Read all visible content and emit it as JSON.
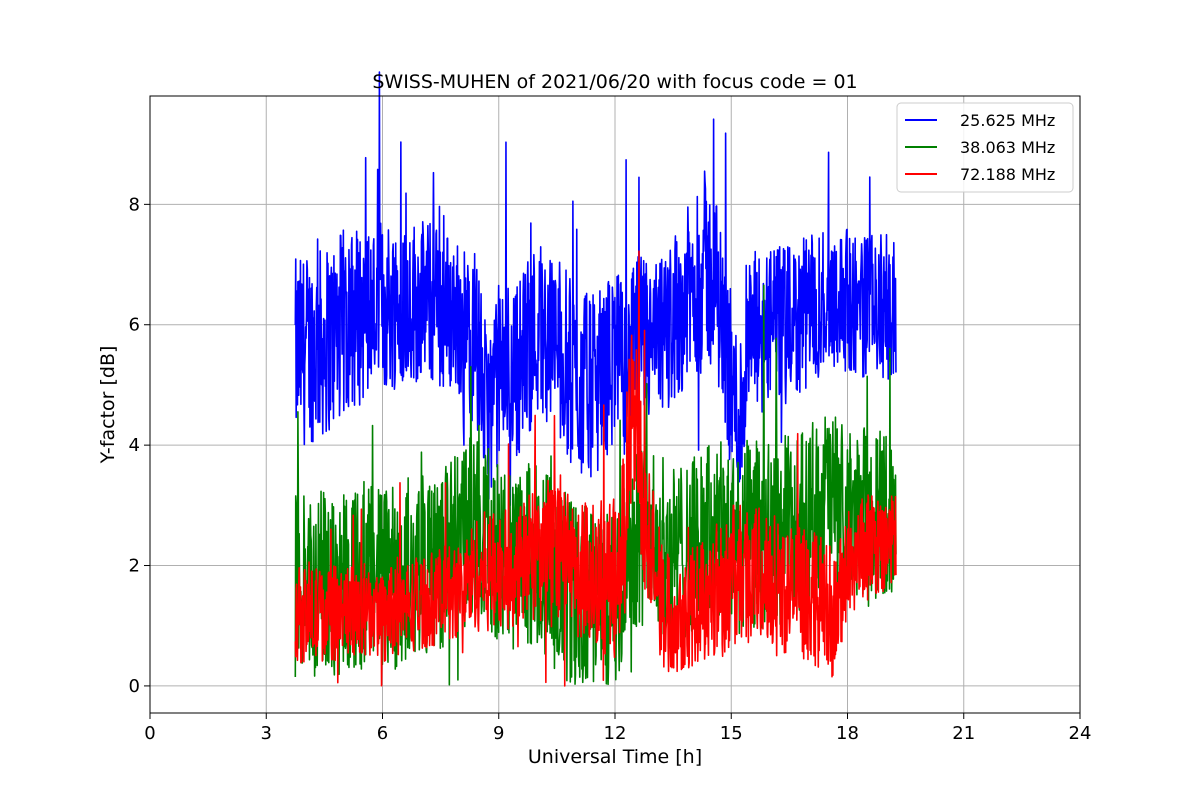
{
  "chart_data": {
    "type": "line",
    "title": "SWISS-MUHEN of 2021/06/20 with focus code = 01",
    "xlabel": "Universal Time [h]",
    "ylabel": "Y-factor [dB]",
    "xlim": [
      0,
      24
    ],
    "ylim": [
      -0.45,
      9.8
    ],
    "xticks": [
      0,
      3,
      6,
      9,
      12,
      15,
      18,
      21,
      24
    ],
    "yticks": [
      0,
      2,
      4,
      6,
      8
    ],
    "grid": true,
    "legend_position": "top-right",
    "series": [
      {
        "name": "25.625 MHz",
        "color": "#0000ff",
        "x": [
          3.75,
          4.0,
          4.5,
          5.0,
          5.5,
          6.0,
          6.5,
          7.0,
          7.5,
          8.0,
          8.5,
          8.7,
          9.0,
          9.5,
          10.0,
          10.5,
          11.0,
          11.5,
          12.0,
          12.3,
          12.6,
          13.0,
          13.5,
          14.0,
          14.3,
          14.7,
          15.0,
          15.2,
          15.5,
          16.0,
          16.5,
          17.0,
          17.5,
          18.0,
          18.5,
          19.0,
          19.25
        ],
        "y": [
          5.5,
          5.6,
          5.7,
          6.0,
          6.2,
          6.3,
          6.4,
          6.4,
          6.3,
          6.1,
          5.5,
          4.4,
          5.2,
          5.3,
          6.0,
          5.7,
          5.0,
          5.0,
          5.5,
          5.2,
          5.8,
          5.6,
          6.1,
          6.6,
          7.0,
          6.4,
          5.0,
          4.3,
          5.8,
          6.0,
          6.0,
          6.2,
          6.5,
          6.4,
          6.3,
          6.3,
          6.2
        ],
        "spread": [
          1.6,
          1.6,
          1.6,
          1.6,
          1.5,
          1.5,
          1.4,
          1.4,
          1.4,
          1.3,
          1.4,
          1.4,
          1.5,
          1.5,
          1.5,
          1.5,
          1.6,
          1.5,
          1.5,
          1.4,
          1.4,
          1.4,
          1.4,
          1.5,
          1.6,
          1.5,
          1.5,
          1.5,
          1.4,
          1.3,
          1.3,
          1.3,
          1.2,
          1.2,
          1.2,
          1.2,
          1.2
        ]
      },
      {
        "name": "38.063 MHz",
        "color": "#008000",
        "x": [
          3.75,
          4.0,
          4.5,
          5.0,
          5.5,
          6.0,
          6.5,
          7.0,
          7.5,
          8.0,
          8.5,
          9.0,
          9.5,
          10.0,
          10.5,
          11.0,
          11.5,
          12.0,
          12.3,
          12.6,
          13.0,
          13.5,
          14.0,
          14.5,
          15.0,
          15.5,
          16.0,
          16.5,
          17.0,
          17.5,
          18.0,
          18.5,
          19.0,
          19.25
        ],
        "y": [
          1.6,
          1.6,
          1.7,
          1.8,
          1.8,
          1.8,
          1.9,
          2.0,
          2.1,
          2.4,
          2.7,
          2.2,
          2.0,
          2.3,
          1.8,
          1.4,
          1.5,
          1.3,
          2.3,
          2.6,
          2.4,
          2.2,
          2.3,
          2.6,
          2.4,
          2.5,
          2.5,
          2.6,
          2.8,
          3.2,
          2.8,
          2.9,
          2.9,
          2.8
        ],
        "spread": [
          1.6,
          1.6,
          1.6,
          1.6,
          1.6,
          1.6,
          1.6,
          1.5,
          1.5,
          1.5,
          1.5,
          1.5,
          1.5,
          1.6,
          1.6,
          1.6,
          1.6,
          1.5,
          1.5,
          1.6,
          1.5,
          1.5,
          1.5,
          1.5,
          1.6,
          1.6,
          1.6,
          1.6,
          1.5,
          1.5,
          1.4,
          1.4,
          1.4,
          1.4
        ]
      },
      {
        "name": "72.188 MHz",
        "color": "#ff0000",
        "x": [
          3.75,
          4.0,
          4.5,
          5.0,
          5.5,
          6.0,
          6.5,
          7.0,
          7.5,
          8.0,
          8.5,
          9.0,
          9.5,
          10.0,
          10.5,
          11.0,
          11.5,
          12.0,
          12.2,
          12.4,
          12.6,
          12.8,
          13.0,
          13.2,
          13.5,
          14.0,
          14.5,
          15.0,
          15.5,
          16.0,
          16.5,
          17.0,
          17.5,
          17.7,
          18.0,
          18.5,
          19.0,
          19.25
        ],
        "y": [
          1.2,
          1.15,
          1.2,
          1.2,
          1.25,
          1.2,
          1.3,
          1.4,
          1.5,
          1.6,
          1.9,
          1.9,
          2.0,
          2.2,
          2.1,
          1.9,
          1.9,
          1.8,
          2.2,
          4.4,
          4.1,
          2.6,
          2.4,
          1.3,
          1.2,
          1.3,
          1.6,
          1.8,
          1.9,
          1.7,
          1.6,
          1.5,
          1.3,
          1.1,
          2.1,
          2.3,
          2.4,
          2.4
        ],
        "spread": [
          0.8,
          0.8,
          0.8,
          0.8,
          0.8,
          0.8,
          0.8,
          0.8,
          0.8,
          0.8,
          1.0,
          1.0,
          1.0,
          1.2,
          1.2,
          1.2,
          1.3,
          1.4,
          1.6,
          1.6,
          1.4,
          1.3,
          1.2,
          1.1,
          1.0,
          1.0,
          1.1,
          1.2,
          1.2,
          1.2,
          1.1,
          1.1,
          1.1,
          1.0,
          1.0,
          0.9,
          0.8,
          0.8
        ]
      }
    ]
  }
}
